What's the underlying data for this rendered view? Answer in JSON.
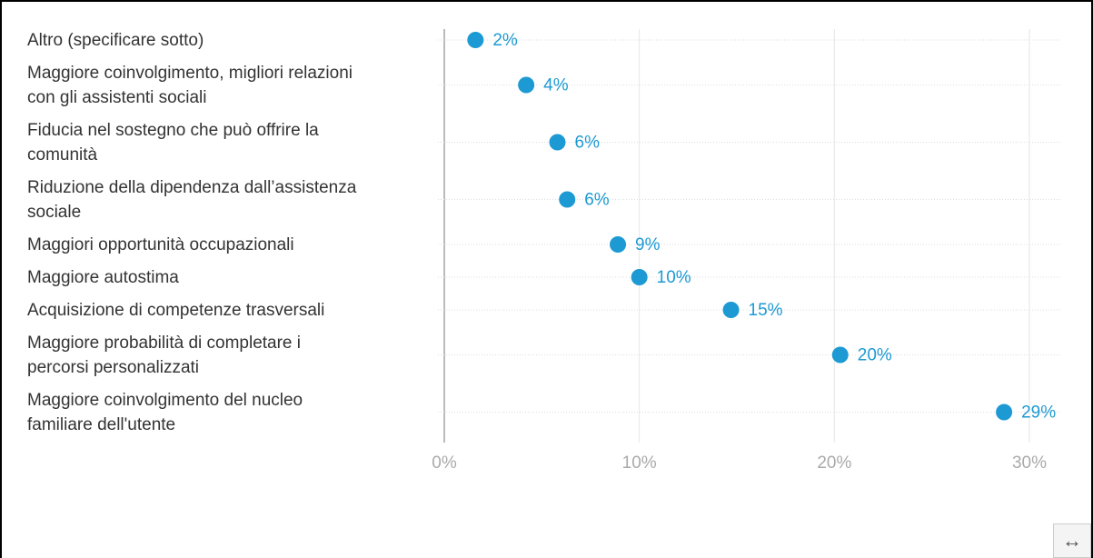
{
  "chart_data": {
    "type": "dot",
    "categories": [
      "Altro (specificare sotto)",
      "Maggiore coinvolgimento, migliori relazioni\ncon gli assistenti sociali",
      "Fiducia nel sostegno che può offrire la\ncomunità",
      "Riduzione della dipendenza dall’assistenza\nsociale",
      "Maggiori opportunità occupazionali",
      "Maggiore autostima",
      "Acquisizione di competenze trasversali",
      "Maggiore probabilità di completare i\npercorsi personalizzati",
      "Maggiore coinvolgimento del nucleo\nfamiliare dell'utente"
    ],
    "values": [
      1.6,
      4.2,
      5.8,
      6.3,
      8.9,
      10.0,
      14.7,
      20.3,
      28.7
    ],
    "value_labels": [
      "2%",
      "4%",
      "6%",
      "6%",
      "9%",
      "10%",
      "15%",
      "20%",
      "29%"
    ],
    "color": "#1d9ad3",
    "xlim": [
      0,
      30
    ],
    "xticks": [
      {
        "value": 0,
        "label": "0%"
      },
      {
        "value": 10,
        "label": "10%"
      },
      {
        "value": 20,
        "label": "20%"
      },
      {
        "value": 30,
        "label": "30%"
      }
    ],
    "grid": true
  },
  "expand_icon": "↔"
}
